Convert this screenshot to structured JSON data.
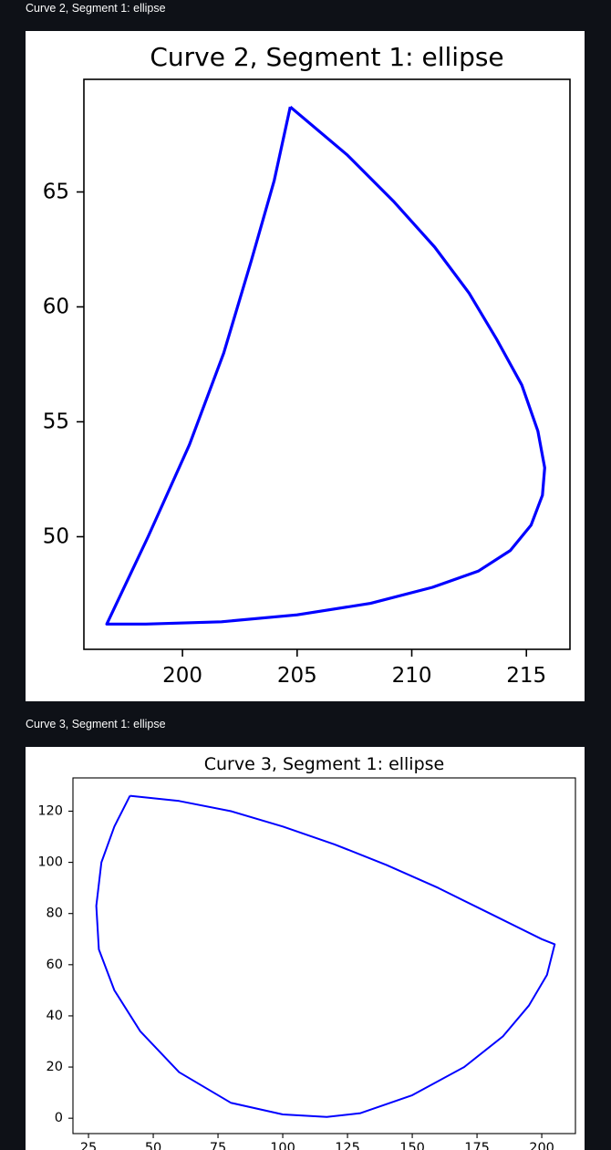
{
  "figures": [
    {
      "caption": "Curve 2, Segment 1: ellipse"
    },
    {
      "caption": "Curve 3, Segment 1: ellipse"
    }
  ],
  "chart_data": [
    {
      "type": "line",
      "title": "Curve 2, Segment 1: ellipse",
      "xlabel": "",
      "ylabel": "",
      "xlim": [
        195.7,
        216.9
      ],
      "ylim": [
        45.1,
        69.9
      ],
      "x_ticks": [
        200,
        205,
        210,
        215
      ],
      "y_ticks": [
        50,
        55,
        60,
        65
      ],
      "grid": false,
      "series": [
        {
          "color": "#0000ff",
          "x": [
            204.7,
            207.2,
            209.2,
            211.0,
            212.5,
            213.7,
            214.8,
            215.5,
            215.8,
            215.7,
            215.2,
            214.3,
            212.9,
            210.9,
            208.2,
            205.0,
            201.7,
            198.4,
            196.7,
            198.5,
            200.3,
            201.8,
            203.0,
            204.0,
            204.7
          ],
          "y": [
            68.7,
            66.6,
            64.6,
            62.6,
            60.6,
            58.6,
            56.6,
            54.6,
            53.0,
            51.8,
            50.5,
            49.4,
            48.5,
            47.8,
            47.1,
            46.6,
            46.3,
            46.2,
            46.2,
            50.0,
            54.0,
            58.0,
            62.0,
            65.5,
            68.7
          ]
        }
      ]
    },
    {
      "type": "line",
      "title": "Curve 3, Segment 1: ellipse",
      "xlabel": "",
      "ylabel": "",
      "xlim": [
        19,
        213
      ],
      "ylim": [
        -6,
        133
      ],
      "x_ticks": [
        25,
        50,
        75,
        100,
        125,
        150,
        175,
        200
      ],
      "y_ticks": [
        0,
        20,
        40,
        60,
        80,
        100,
        120
      ],
      "grid": false,
      "series": [
        {
          "color": "#0000ff",
          "x": [
            41,
            60,
            80,
            100,
            120,
            140,
            160,
            180,
            200,
            205,
            202,
            195,
            185,
            170,
            150,
            130,
            117,
            100,
            80,
            60,
            45,
            35,
            29,
            28,
            30,
            35,
            41
          ],
          "y": [
            126,
            124,
            120,
            114,
            107,
            99,
            90,
            80,
            70,
            68,
            56,
            44,
            32,
            20,
            9,
            2,
            0.5,
            1.5,
            6,
            18,
            34,
            50,
            66,
            83,
            100,
            114,
            126
          ]
        }
      ]
    }
  ]
}
